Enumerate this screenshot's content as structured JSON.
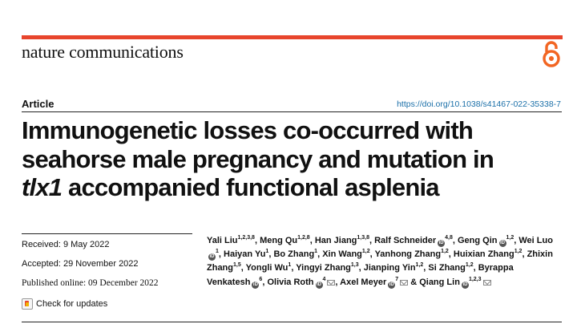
{
  "journal": {
    "name": "nature communications"
  },
  "article": {
    "type": "Article",
    "doi": "https://doi.org/10.1038/s41467-022-35338-7",
    "title": {
      "line1": "Immunogenetic losses co-occurred with",
      "line2": "seahorse male pregnancy and mutation in",
      "gene": "tlx1",
      "line3_rest": " accompanied functional asplenia"
    }
  },
  "dates": {
    "received": "Received: 9 May 2022",
    "accepted": "Accepted: 29 November 2022",
    "published": "Published online: 09 December 2022"
  },
  "check_updates": "Check for updates",
  "authors": [
    {
      "name": "Yali Liu",
      "aff": "1,2,3,8",
      "sep": ", "
    },
    {
      "name": "Meng Qu",
      "aff": "1,2,8",
      "sep": ", "
    },
    {
      "name": "Han Jiang",
      "aff": "1,3,8",
      "sep": ", "
    },
    {
      "name": "Ralf Schneider",
      "orcid": true,
      "aff": "4,8",
      "sep": ", "
    },
    {
      "name": "Geng Qin",
      "orcid": true,
      "aff": "1,2",
      "sep": ", "
    },
    {
      "name": "Wei Luo",
      "orcid": true,
      "aff": "1",
      "sep": ", "
    },
    {
      "name": "Haiyan Yu",
      "aff": "1",
      "sep": ", "
    },
    {
      "name": "Bo Zhang",
      "aff": "1",
      "sep": ", "
    },
    {
      "name": "Xin Wang",
      "aff": "1,2",
      "sep": ", "
    },
    {
      "name": "Yanhong Zhang",
      "aff": "1,2",
      "sep": ", "
    },
    {
      "name": "Huixian Zhang",
      "aff": "1,2",
      "sep": ", "
    },
    {
      "name": "Zhixin Zhang",
      "aff": "1,5",
      "sep": ", "
    },
    {
      "name": "Yongli Wu",
      "aff": "1",
      "sep": ", "
    },
    {
      "name": "Yingyi Zhang",
      "aff": "1,3",
      "sep": ", "
    },
    {
      "name": "Jianping Yin",
      "aff": "1,2",
      "sep": ", "
    },
    {
      "name": "Si Zhang",
      "aff": "1,2",
      "sep": ", "
    },
    {
      "name": "Byrappa Venkatesh",
      "orcid": true,
      "aff": "6",
      "sep": ", "
    },
    {
      "name": "Olivia Roth",
      "orcid": true,
      "aff": "4",
      "mail": true,
      "sep": ", "
    },
    {
      "name": "Axel Meyer",
      "orcid": true,
      "aff": "7",
      "mail": true,
      "sep": " & "
    },
    {
      "name": "Qiang Lin",
      "orcid": true,
      "aff": "1,2,3",
      "mail": true,
      "sep": ""
    }
  ],
  "colors": {
    "accent": "#e8452c",
    "link": "#1a6fa8",
    "oa_orange": "#f26522"
  },
  "icons": {
    "open_access": "open-access-lock-icon",
    "orcid": "orcid-icon",
    "mail": "mail-icon",
    "crossmark": "crossmark-icon"
  }
}
